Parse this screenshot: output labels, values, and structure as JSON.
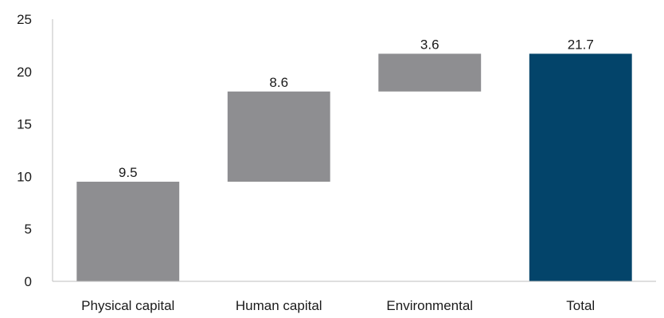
{
  "chart_data": {
    "type": "bar",
    "subtype": "waterfall",
    "categories": [
      "Physical capital",
      "Human capital",
      "Environmental",
      "Total"
    ],
    "values": [
      9.5,
      8.6,
      3.6,
      21.7
    ],
    "bar_ranges": [
      [
        0,
        9.5
      ],
      [
        9.5,
        18.1
      ],
      [
        18.1,
        21.7
      ],
      [
        0,
        21.7
      ]
    ],
    "data_labels": [
      "9.5",
      "8.6",
      "3.6",
      "21.7"
    ],
    "title": "",
    "xlabel": "",
    "ylabel": "",
    "ylim": [
      0,
      25
    ],
    "yticks": [
      0,
      5,
      10,
      15,
      20,
      25
    ],
    "ytick_labels": [
      "0",
      "5",
      "10",
      "15",
      "20",
      "25"
    ],
    "grid": false,
    "legend": "none",
    "colors": {
      "increment": "#8e8e91",
      "total": "#03446a",
      "axis": "#bfbfbf"
    }
  }
}
